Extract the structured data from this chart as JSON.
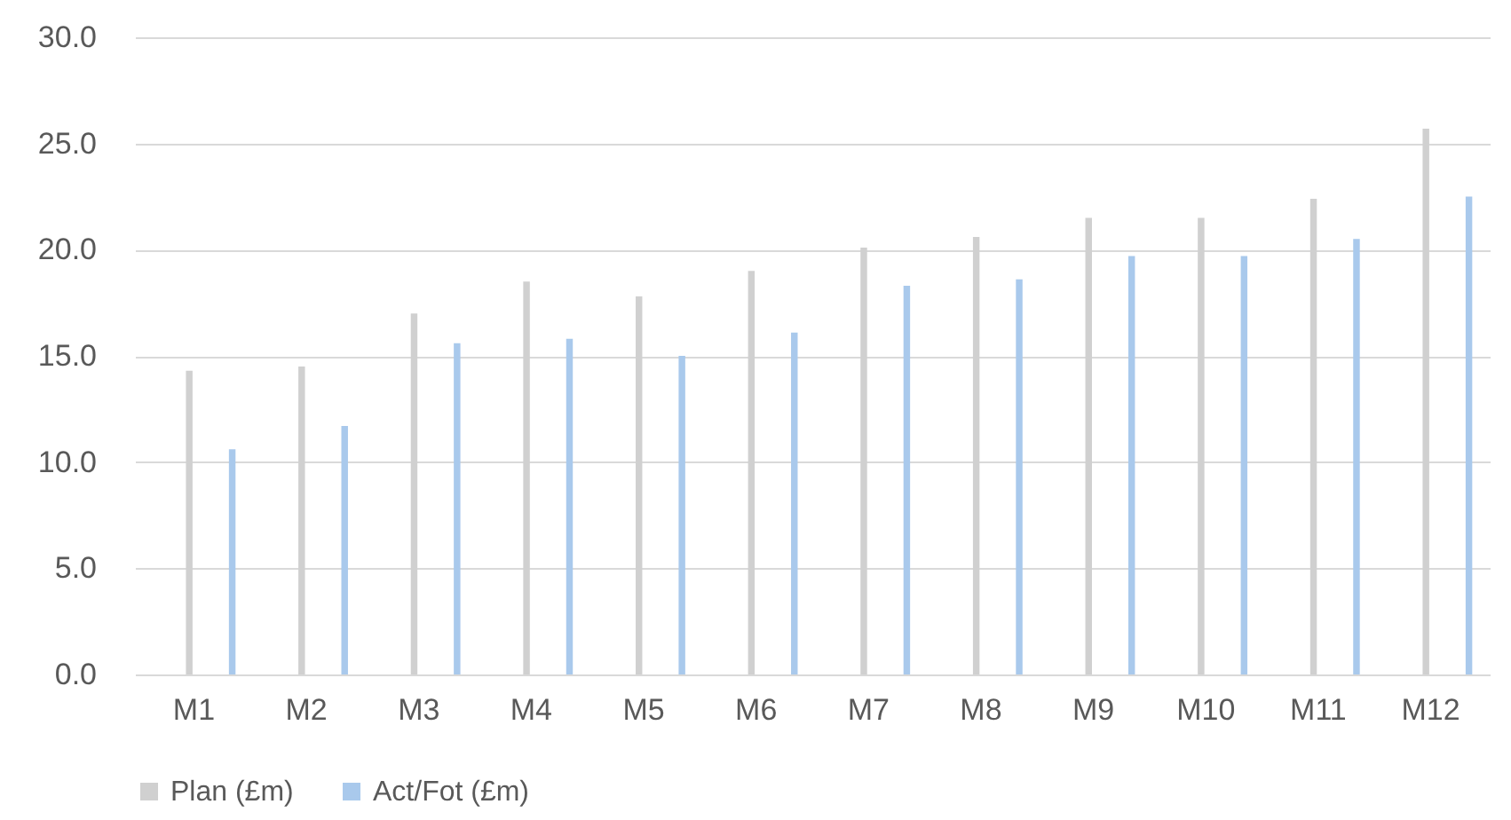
{
  "chart_data": {
    "type": "bar",
    "categories": [
      "M1",
      "M2",
      "M3",
      "M4",
      "M5",
      "M6",
      "M7",
      "M8",
      "M9",
      "M10",
      "M11",
      "M12"
    ],
    "series": [
      {
        "name": "Plan (£m)",
        "color": "#d0d0d0",
        "values": [
          14.3,
          14.5,
          17.0,
          18.5,
          17.8,
          19.0,
          20.1,
          20.6,
          21.5,
          21.5,
          22.4,
          25.7
        ]
      },
      {
        "name": "Act/Fot (£m)",
        "color": "#a9c9ec",
        "values": [
          10.6,
          11.7,
          15.6,
          15.8,
          15.0,
          16.1,
          18.3,
          18.6,
          19.7,
          19.7,
          20.5,
          22.5
        ]
      }
    ],
    "ylim": [
      0,
      30
    ],
    "yticks": [
      {
        "value": 0,
        "label": "0.0"
      },
      {
        "value": 5,
        "label": "5.0"
      },
      {
        "value": 10,
        "label": "10.0"
      },
      {
        "value": 15,
        "label": "15.0"
      },
      {
        "value": 20,
        "label": "20.0"
      },
      {
        "value": 25,
        "label": "25.0"
      },
      {
        "value": 30,
        "label": "30.0"
      }
    ],
    "grid": "y",
    "legend": "bottom"
  }
}
